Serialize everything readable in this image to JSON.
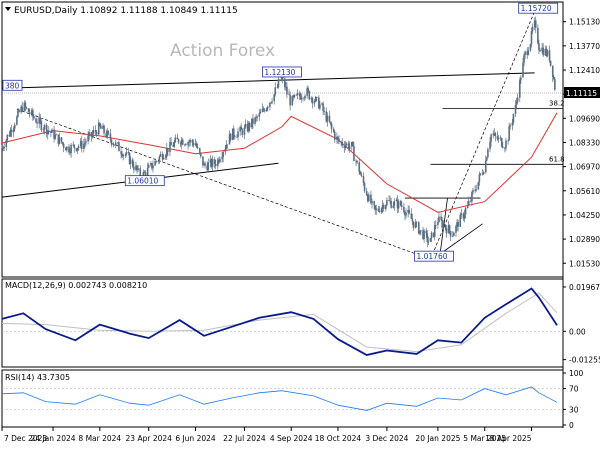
{
  "header": {
    "symbol_line": "EURUSD,Daily  1.10892 1.11188 1.10849 1.11115",
    "watermark": "Action Forex"
  },
  "colors": {
    "candle": "#5a6e82",
    "sma": "#e23030",
    "trendline": "#000000",
    "macd_line": "#0a1a8c",
    "macd_signal": "#c0c0c0",
    "rsi": "#1e78ff",
    "label_box": "#2233aa",
    "price_box_bg": "#000000"
  },
  "chart_data": [
    {
      "type": "line",
      "title": "EURUSD,Daily",
      "ohlc_header": {
        "open": 1.10892,
        "high": 1.11188,
        "low": 1.10849,
        "close": 1.11115
      },
      "x_tick_labels": [
        "7 Dec 2023",
        "24 Jan 2024",
        "8 Mar 2024",
        "23 Apr 2024",
        "6 Jun 2024",
        "22 Jul 2024",
        "4 Sep 2024",
        "18 Oct 2024",
        "3 Dec 2024",
        "20 Jan 2025",
        "5 Mar 2025",
        "18 Apr 2025"
      ],
      "y_tick_labels": [
        "1.15130",
        "1.13770",
        "1.12410",
        "1.11050",
        "1.09690",
        "1.08330",
        "1.06970",
        "1.05610",
        "1.04250",
        "1.02890",
        "1.01530"
      ],
      "ylim": [
        1.0115,
        1.159
      ],
      "current_price_label": "1.11115",
      "current_price": 1.11115,
      "series": [
        {
          "name": "EURUSD close",
          "x": [
            "2023-12-07",
            "2023-12-27",
            "2024-01-10",
            "2024-01-24",
            "2024-02-07",
            "2024-02-21",
            "2024-03-08",
            "2024-03-22",
            "2024-04-05",
            "2024-04-16",
            "2024-04-23",
            "2024-05-08",
            "2024-05-22",
            "2024-06-06",
            "2024-06-14",
            "2024-06-26",
            "2024-07-10",
            "2024-07-22",
            "2024-08-05",
            "2024-08-19",
            "2024-08-26",
            "2024-09-04",
            "2024-09-18",
            "2024-10-02",
            "2024-10-18",
            "2024-10-31",
            "2024-11-14",
            "2024-11-22",
            "2024-12-03",
            "2024-12-17",
            "2024-12-31",
            "2025-01-13",
            "2025-01-20",
            "2025-02-03",
            "2025-02-18",
            "2025-03-05",
            "2025-03-11",
            "2025-03-25",
            "2025-04-04",
            "2025-04-11",
            "2025-04-18",
            "2025-04-21",
            "2025-04-25",
            "2025-05-05",
            "2025-05-12"
          ],
          "values": [
            1.08,
            1.104,
            1.095,
            1.088,
            1.08,
            1.082,
            1.092,
            1.083,
            1.074,
            1.064,
            1.068,
            1.078,
            1.085,
            1.083,
            1.07,
            1.072,
            1.088,
            1.09,
            1.098,
            1.11,
            1.12,
            1.106,
            1.112,
            1.104,
            1.084,
            1.081,
            1.055,
            1.044,
            1.05,
            1.048,
            1.036,
            1.027,
            1.04,
            1.032,
            1.048,
            1.07,
            1.088,
            1.082,
            1.105,
            1.13,
            1.142,
            1.15,
            1.138,
            1.132,
            1.111
          ]
        },
        {
          "name": "Moving average",
          "x": [
            "2023-12-07",
            "2024-01-24",
            "2024-03-08",
            "2024-04-23",
            "2024-06-06",
            "2024-07-22",
            "2024-08-26",
            "2024-09-04",
            "2024-10-18",
            "2024-12-03",
            "2025-01-20",
            "2025-03-05",
            "2025-04-18",
            "2025-05-12"
          ],
          "values": [
            1.083,
            1.09,
            1.087,
            1.082,
            1.077,
            1.08,
            1.092,
            1.098,
            1.085,
            1.06,
            1.044,
            1.05,
            1.075,
            1.1
          ]
        }
      ],
      "annotations": [
        {
          "text": "1.15720",
          "x": "2025-04-21",
          "y": 1.1572
        },
        {
          "text": "1.12130",
          "x": "2024-08-23",
          "y": 1.1213
        },
        {
          "text": "1.06010",
          "x": "2024-04-16",
          "y": 1.0601
        },
        {
          "text": "1.01760",
          "x": "2025-01-13",
          "y": 1.0176
        },
        {
          "text": "380",
          "x": "2023-12-07",
          "y": 1.1138
        },
        {
          "text": "38.2",
          "x": "2025-05-12",
          "y": 1.1025
        },
        {
          "text": "61.8",
          "x": "2025-05-12",
          "y": 1.071
        }
      ],
      "fibonacci_levels": [
        {
          "label": "38.2",
          "value": 1.1025
        },
        {
          "label": "61.8",
          "value": 1.071
        }
      ],
      "trendlines": [
        {
          "from": {
            "x": "2023-12-07",
            "y": 1.1138
          },
          "to": {
            "x": "2025-04-21",
            "y": 1.1225
          }
        },
        {
          "from": {
            "x": "2023-12-07",
            "y": 1.0525
          },
          "to": {
            "x": "2024-08-23",
            "y": 1.0716
          }
        },
        {
          "from": {
            "x": "2023-12-21",
            "y": 1.102
          },
          "to": {
            "x": "2025-01-13",
            "y": 1.0176
          }
        },
        {
          "from": {
            "x": "2025-01-13",
            "y": 1.0176
          },
          "to": {
            "x": "2025-04-21",
            "y": 1.1572
          }
        }
      ],
      "grid": false
    },
    {
      "type": "line",
      "title": "MACD(12,26,9) 0.002743 0.008210",
      "y_tick_labels": [
        "0.019679",
        "0.00",
        "-0.012552"
      ],
      "ylim": [
        -0.0145,
        0.021
      ],
      "series": [
        {
          "name": "MACD",
          "x": [
            "2023-12-07",
            "2023-12-27",
            "2024-01-17",
            "2024-02-14",
            "2024-03-08",
            "2024-04-05",
            "2024-04-23",
            "2024-05-22",
            "2024-06-14",
            "2024-07-10",
            "2024-08-05",
            "2024-09-04",
            "2024-09-25",
            "2024-10-18",
            "2024-11-14",
            "2024-12-03",
            "2024-12-31",
            "2025-01-20",
            "2025-02-11",
            "2025-03-05",
            "2025-03-25",
            "2025-04-18",
            "2025-04-25",
            "2025-05-12"
          ],
          "values": [
            0.0055,
            0.008,
            0.001,
            -0.004,
            0.003,
            -0.001,
            -0.003,
            0.005,
            -0.002,
            0.002,
            0.006,
            0.0085,
            0.0055,
            -0.0035,
            -0.0105,
            -0.0085,
            -0.01,
            -0.004,
            -0.005,
            0.006,
            0.012,
            0.019,
            0.015,
            0.0027
          ]
        },
        {
          "name": "Signal",
          "x": [
            "2023-12-07",
            "2024-01-17",
            "2024-03-08",
            "2024-04-23",
            "2024-06-14",
            "2024-08-05",
            "2024-09-25",
            "2024-11-14",
            "2024-12-31",
            "2025-02-11",
            "2025-03-25",
            "2025-04-25",
            "2025-05-12"
          ],
          "values": [
            0.0035,
            0.003,
            0.0005,
            0.0,
            0.0005,
            0.005,
            0.0075,
            -0.007,
            -0.009,
            -0.006,
            0.008,
            0.017,
            0.0082
          ]
        }
      ]
    },
    {
      "type": "line",
      "title": "RSI(14) 43.7305",
      "y_tick_labels": [
        "100",
        "70",
        "30",
        "0"
      ],
      "ylim": [
        0,
        100
      ],
      "reference_lines": [
        70,
        30
      ],
      "series": [
        {
          "name": "RSI",
          "x": [
            "2023-12-07",
            "2023-12-27",
            "2024-01-17",
            "2024-02-14",
            "2024-03-08",
            "2024-04-05",
            "2024-04-23",
            "2024-05-22",
            "2024-06-14",
            "2024-07-10",
            "2024-08-05",
            "2024-08-26",
            "2024-09-25",
            "2024-10-18",
            "2024-11-14",
            "2024-12-03",
            "2024-12-31",
            "2025-01-20",
            "2025-02-11",
            "2025-03-05",
            "2025-03-25",
            "2025-04-18",
            "2025-04-25",
            "2025-05-12"
          ],
          "values": [
            60,
            62,
            45,
            40,
            58,
            42,
            38,
            58,
            40,
            52,
            62,
            66,
            56,
            38,
            28,
            42,
            36,
            52,
            48,
            70,
            58,
            73,
            62,
            43.7
          ]
        }
      ]
    }
  ]
}
